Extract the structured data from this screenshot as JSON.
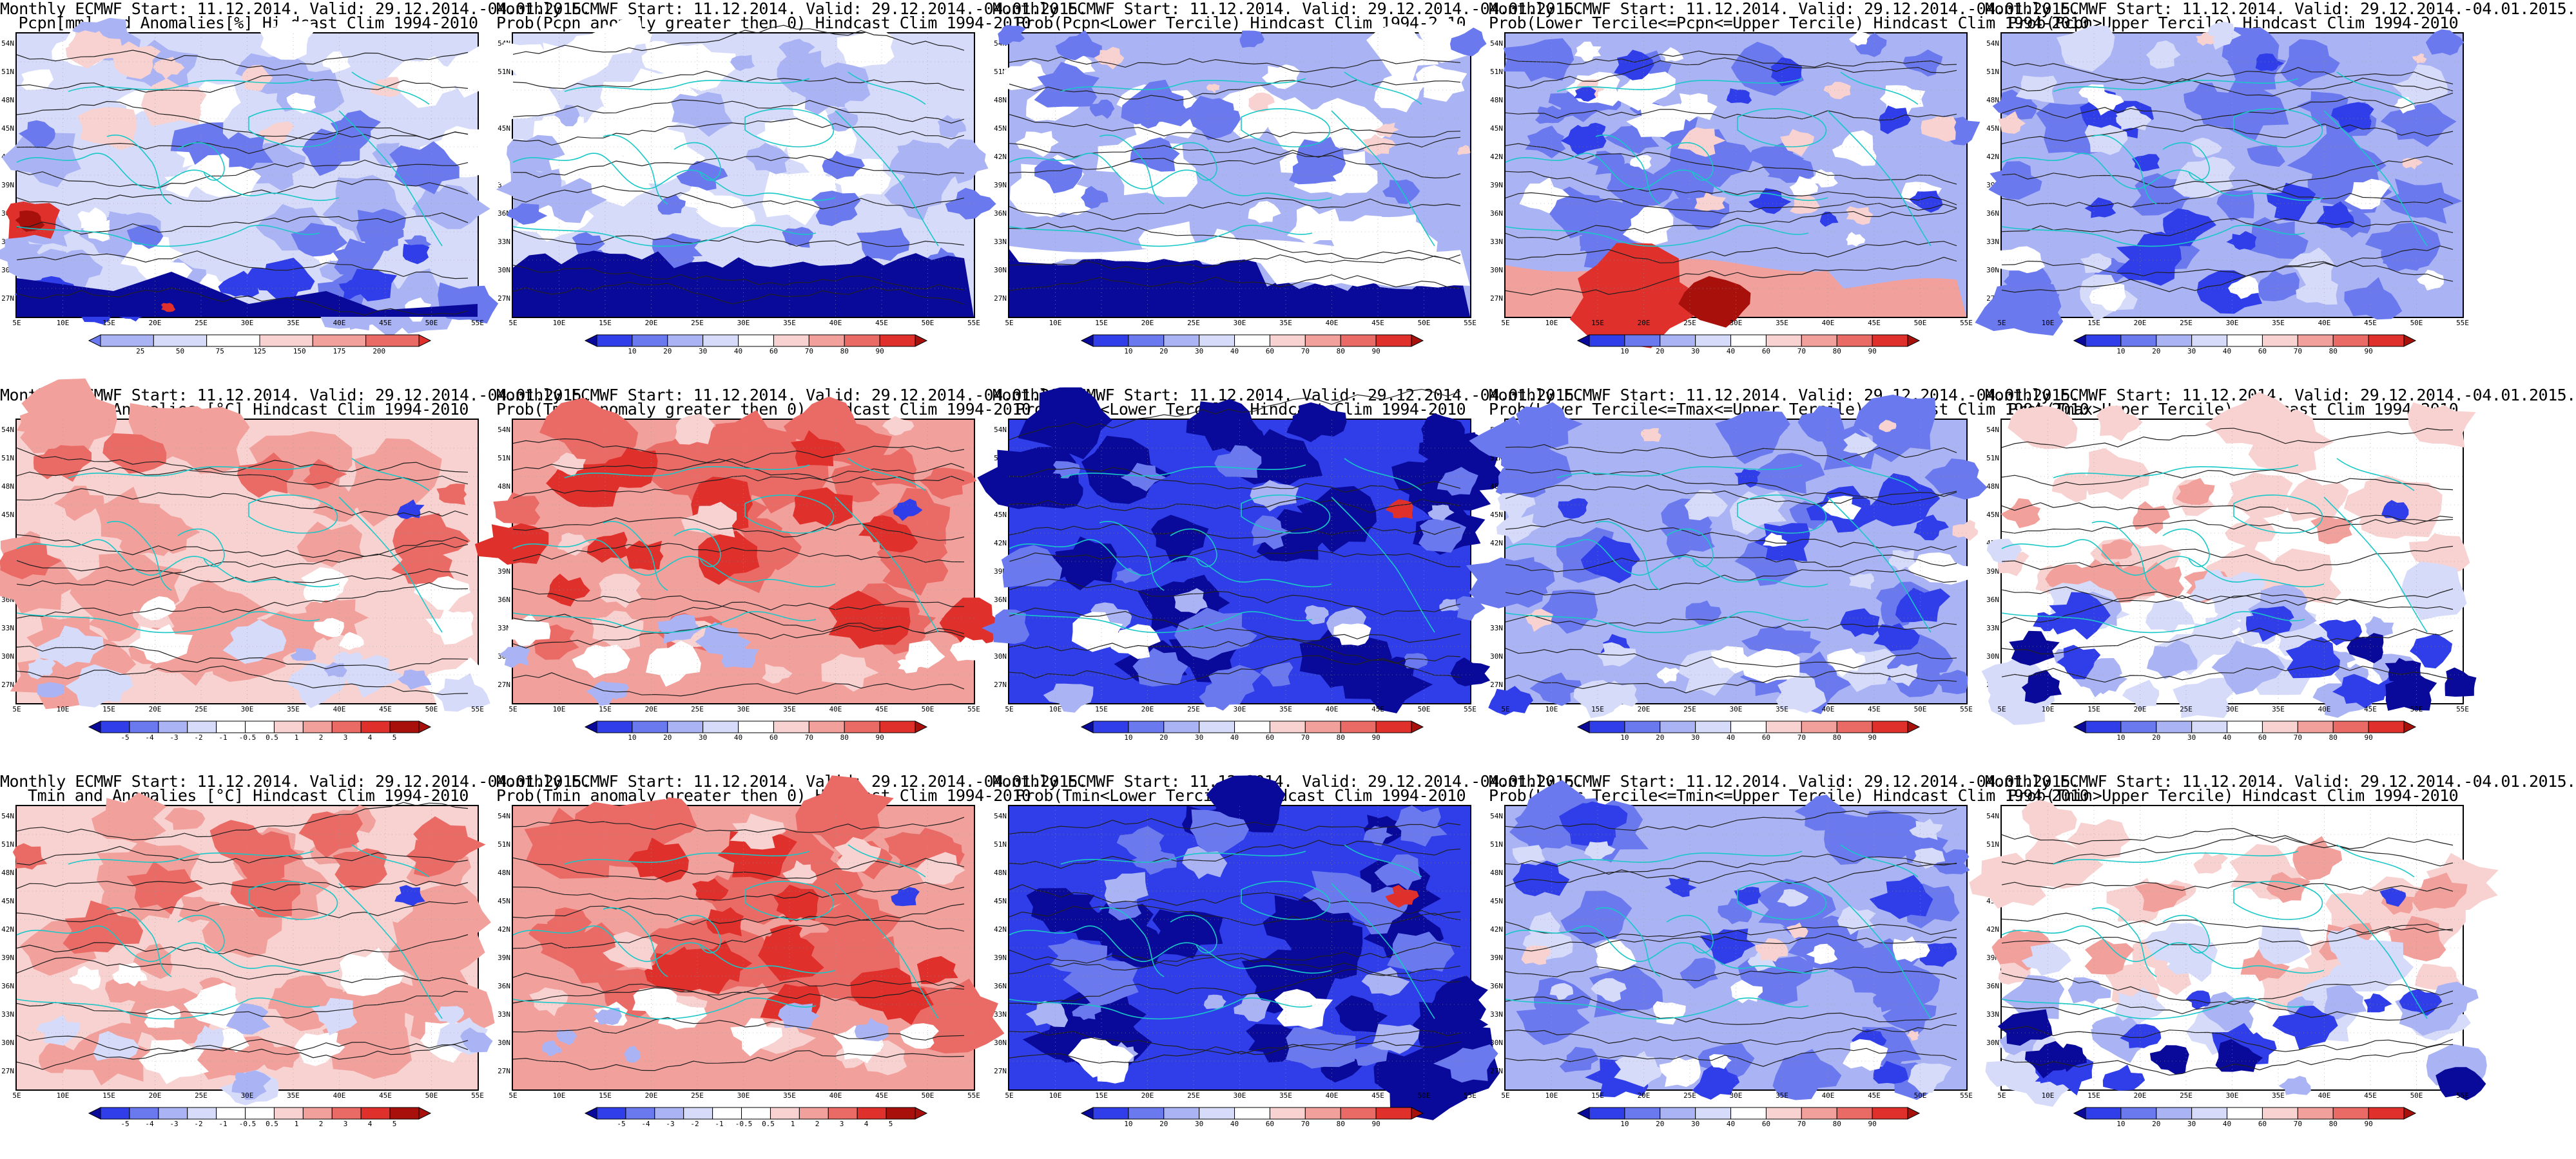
{
  "colors": {
    "deep_blue": "#0a0a9a",
    "blue": "#2f3ee8",
    "mid_blue": "#6b79ee",
    "light_blue": "#aab3f4",
    "pale_blue": "#d6dbfa",
    "white": "#ffffff",
    "pale_red": "#f8d2d0",
    "light_red": "#f2a09c",
    "mid_red": "#ea6b66",
    "red": "#e0302c",
    "deep_red": "#a8100c",
    "coast": "#18c8c8",
    "contour": "#202020"
  },
  "axis": {
    "lat_labels": [
      "54N",
      "51N",
      "48N",
      "45N",
      "42N",
      "39N",
      "36N",
      "33N",
      "30N",
      "27N"
    ],
    "lon_labels": [
      "5E",
      "10E",
      "15E",
      "20E",
      "25E",
      "30E",
      "35E",
      "40E",
      "45E",
      "50E",
      "55E"
    ]
  },
  "colorbars": {
    "precip": [
      "25",
      "50",
      "75",
      "125",
      "150",
      "175",
      "200"
    ],
    "prob": [
      "10",
      "20",
      "30",
      "40",
      "60",
      "70",
      "80",
      "90"
    ],
    "temp": [
      "-5",
      "-4",
      "-3",
      "-2",
      "-1",
      "-0.5",
      "0.5",
      "1",
      "2",
      "3",
      "4",
      "5"
    ]
  },
  "panels": [
    {
      "title1": "Monthly ECMWF Start: 11.12.2014. Valid: 29.12.2014.-04.01.2015.",
      "title2": "Pcpn[mm] and Anomalies[%] Hindcast Clim 1994-2010",
      "scheme": "precip",
      "bar": "precip"
    },
    {
      "title1": "Monthly ECMWF Start: 11.12.2014. Valid: 29.12.2014.-04.01.2015.",
      "title2": "Prob(Pcpn anomaly greater then 0) Hindcast Clim 1994-2010",
      "scheme": "coldprob",
      "bar": "prob"
    },
    {
      "title1": "Monthly ECMWF Start: 11.12.2014. Valid: 29.12.2014.-04.01.2015.",
      "title2": "Prob(Pcpn<Lower Tercile) Hindcast Clim 1994-2010",
      "scheme": "whiteblue",
      "bar": "prob"
    },
    {
      "title1": "Monthly ECMWF Start: 11.12.2014. Valid: 29.12.2014.-04.01.2015.",
      "title2": "Prob(Lower Tercile<=Pcpn<=Upper Tercile) Hindcast Clim 1994-2010",
      "scheme": "bluesouthred",
      "bar": "prob"
    },
    {
      "title1": "Monthly ECMWF Start: 11.12.2014. Valid: 29.12.2014.-04.01.2015.",
      "title2": "Prob(Pcpn>Upper Tercile) Hindcast Clim 1994-2010",
      "scheme": "blue",
      "bar": "prob"
    },
    {
      "title1": "Monthly ECMWF Start: 11.12.2014. Valid: 29.12.2014.-04.01.2015.",
      "title2": "Tmax and Anomalies [°C] Hindcast Clim 1994-2010",
      "scheme": "warm",
      "bar": "temp"
    },
    {
      "title1": "Monthly ECMWF Start: 11.12.2014. Valid: 29.12.2014.-04.01.2015.",
      "title2": "Prob(Tmax anomaly greater then 0) Hindcast Clim 1994-2010",
      "scheme": "warmstrong",
      "bar": "prob"
    },
    {
      "title1": "Monthly ECMWF Start: 11.12.2014. Valid: 29.12.2014.-04.01.2015.",
      "title2": "Prob(Tmax<Lower Tercile) Hindcast Clim 1994-2010",
      "scheme": "deepblue",
      "bar": "prob"
    },
    {
      "title1": "Monthly ECMWF Start: 11.12.2014. Valid: 29.12.2014.-04.01.2015.",
      "title2": "Prob(Lower Tercile<=Tmax<=Upper Tercile) Hindcast Clim 1994-2010",
      "scheme": "blue",
      "bar": "prob"
    },
    {
      "title1": "Monthly ECMWF Start: 11.12.2014. Valid: 29.12.2014.-04.01.2015.",
      "title2": "Prob(Tmax>Upper Tercile) Hindcast Clim 1994-2010",
      "scheme": "mixed",
      "bar": "prob"
    },
    {
      "title1": "Monthly ECMWF Start: 11.12.2014. Valid: 29.12.2014.-04.01.2015.",
      "title2": "Tmin and Anomalies [°C] Hindcast Clim 1994-2010",
      "scheme": "warm",
      "bar": "temp"
    },
    {
      "title1": "Monthly ECMWF Start: 11.12.2014. Valid: 29.12.2014.-04.01.2015.",
      "title2": "Prob(Tmin anomaly greater then 0) Hindcast Clim 1994-2010",
      "scheme": "warmstrong",
      "bar": "temp"
    },
    {
      "title1": "Monthly ECMWF Start: 11.12.2014. Valid: 29.12.2014.-04.01.2015.",
      "title2": "Prob(Tmin<Lower Tercile) Hindcast Clim 1994-2010",
      "scheme": "deepblue",
      "bar": "prob"
    },
    {
      "title1": "Monthly ECMWF Start: 11.12.2014. Valid: 29.12.2014.-04.01.2015.",
      "title2": "Prob(Lower Tercile<=Tmin<=Upper Tercile) Hindcast Clim 1994-2010",
      "scheme": "blue",
      "bar": "prob"
    },
    {
      "title1": "Monthly ECMWF Start: 11.12.2014. Valid: 29.12.2014.-04.01.2015.",
      "title2": "Prob(Tmin>Upper Tercile) Hindcast Clim 1994-2010",
      "scheme": "mixed",
      "bar": "prob"
    }
  ]
}
